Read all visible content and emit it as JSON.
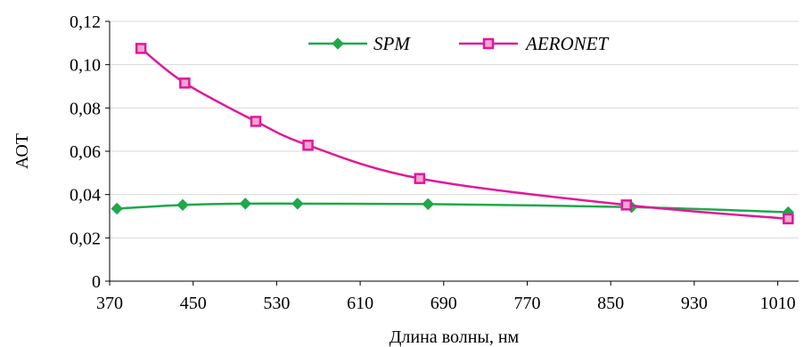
{
  "chart_data": {
    "type": "line",
    "title": "",
    "xlabel": "Длина волны, нм",
    "ylabel": "АОТ",
    "xlim": [
      370,
      1030
    ],
    "ylim": [
      0,
      0.12
    ],
    "x_ticks": [
      370,
      450,
      530,
      610,
      690,
      770,
      850,
      930,
      1010
    ],
    "x_tick_labels": [
      "370",
      "450",
      "530",
      "610",
      "690",
      "770",
      "850",
      "930",
      "1010"
    ],
    "y_ticks": [
      0,
      0.02,
      0.04,
      0.06,
      0.08,
      0.1,
      0.12
    ],
    "y_tick_labels": [
      "0",
      "0,02",
      "0,04",
      "0,06",
      "0,08",
      "0,10",
      "0,12"
    ],
    "grid": "horizontal",
    "legend_position": "top-center",
    "series": [
      {
        "name": "SPM",
        "color": "#1fa84a",
        "marker": "diamond",
        "x": [
          377,
          440,
          500,
          550,
          675,
          870,
          1020
        ],
        "y": [
          0.0335,
          0.0352,
          0.0358,
          0.0358,
          0.0356,
          0.0342,
          0.0318
        ]
      },
      {
        "name": "AERONET",
        "color": "#e0189a",
        "marker": "square",
        "x": [
          400,
          442,
          510,
          560,
          667,
          865,
          1020
        ],
        "y": [
          0.1075,
          0.0915,
          0.0738,
          0.0628,
          0.0474,
          0.0352,
          0.0288
        ]
      }
    ]
  }
}
